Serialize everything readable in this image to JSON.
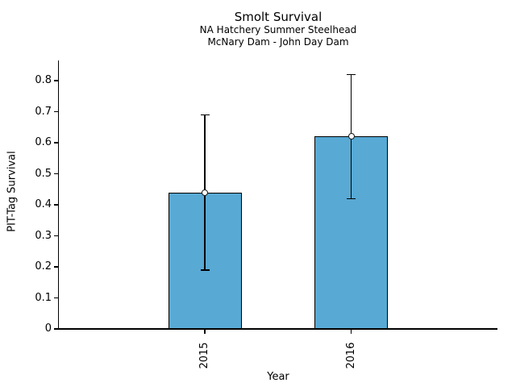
{
  "chart_data": {
    "type": "bar",
    "title": "Smolt Survival",
    "subtitle_lines": [
      "NA Hatchery Summer Steelhead",
      "McNary Dam - John Day Dam"
    ],
    "xlabel": "Year",
    "ylabel": "PIT-Tag Survival",
    "categories": [
      "2015",
      "2016"
    ],
    "values": [
      0.44,
      0.62
    ],
    "error_low": [
      0.19,
      0.42
    ],
    "error_high": [
      0.69,
      0.82
    ],
    "marker": "open-circle",
    "bar_color": "#58a9d4",
    "bar_edge_color": "#000000",
    "error_color": "#000000",
    "ylim": [
      0,
      0.865
    ],
    "y_ticks": [
      {
        "value": 0.0,
        "label": "0"
      },
      {
        "value": 0.1,
        "label": "0.1"
      },
      {
        "value": 0.2,
        "label": "0.2"
      },
      {
        "value": 0.3,
        "label": "0.3"
      },
      {
        "value": 0.4,
        "label": "0.4"
      },
      {
        "value": 0.5,
        "label": "0.5"
      },
      {
        "value": 0.6,
        "label": "0.6"
      },
      {
        "value": 0.7,
        "label": "0.7"
      },
      {
        "value": 0.8,
        "label": "0.8"
      }
    ],
    "grid": false,
    "legend": "none"
  }
}
